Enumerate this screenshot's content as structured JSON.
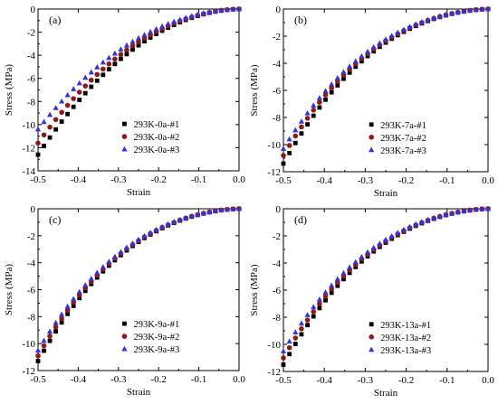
{
  "chart_data": [
    {
      "type": "scatter",
      "panel_label": "(a)",
      "xlabel": "Strain",
      "ylabel": "Stress (MPa)",
      "xlim": [
        -0.5,
        0.0
      ],
      "ylim": [
        -14,
        0
      ],
      "xticks": [
        -0.5,
        -0.4,
        -0.3,
        -0.2,
        -0.1,
        0.0
      ],
      "xtick_labels": [
        "-0.5",
        "-0.4",
        "-0.3",
        "-0.2",
        "-0.1",
        "0.0"
      ],
      "yticks": [
        0,
        -2,
        -4,
        -6,
        -8,
        -10,
        -12,
        -14
      ],
      "ytick_labels": [
        "0",
        "-2",
        "-4",
        "-6",
        "-8",
        "-10",
        "-12",
        "-14"
      ],
      "legend_position": "bottom-right",
      "series": [
        {
          "name": "293K-0a-#1",
          "marker": "square",
          "color": "#000000",
          "end_stress": -12.6,
          "exponent": 2.45
        },
        {
          "name": "293K-0a-#2",
          "marker": "circle",
          "color": "#8b1a1a",
          "end_stress": -11.6,
          "exponent": 2.5
        },
        {
          "name": "293K-0a-#3",
          "marker": "triangle",
          "color": "#3333dd",
          "end_stress": -10.4,
          "exponent": 2.55
        }
      ]
    },
    {
      "type": "scatter",
      "panel_label": "(b)",
      "xlabel": "Strain",
      "ylabel": "Stress (MPa)",
      "xlim": [
        -0.5,
        0.0
      ],
      "ylim": [
        -12,
        0
      ],
      "xticks": [
        -0.5,
        -0.4,
        -0.3,
        -0.2,
        -0.1,
        0.0
      ],
      "xtick_labels": [
        "-0.5",
        "-0.4",
        "-0.3",
        "-0.2",
        "-0.1",
        "0.0"
      ],
      "yticks": [
        0,
        -2,
        -4,
        -6,
        -8,
        -10,
        -12
      ],
      "ytick_labels": [
        "0",
        "-2",
        "-4",
        "-6",
        "-8",
        "-10",
        "-12"
      ],
      "legend_position": "bottom-right",
      "series": [
        {
          "name": "293K-7a-#1",
          "marker": "square",
          "color": "#000000",
          "end_stress": -11.4,
          "exponent": 3.0
        },
        {
          "name": "293K-7a-#2",
          "marker": "circle",
          "color": "#8b1a1a",
          "end_stress": -10.8,
          "exponent": 3.0
        },
        {
          "name": "293K-7a-#3",
          "marker": "triangle",
          "color": "#3333dd",
          "end_stress": -10.3,
          "exponent": 3.0
        }
      ]
    },
    {
      "type": "scatter",
      "panel_label": "(c)",
      "xlabel": "Strain",
      "ylabel": "Stress (MPa)",
      "xlim": [
        -0.5,
        0.0
      ],
      "ylim": [
        -12,
        0
      ],
      "xticks": [
        -0.5,
        -0.4,
        -0.3,
        -0.2,
        -0.1,
        0.0
      ],
      "xtick_labels": [
        "-0.5",
        "-0.4",
        "-0.3",
        "-0.2",
        "-0.1",
        "0.0"
      ],
      "yticks": [
        0,
        -2,
        -4,
        -6,
        -8,
        -10,
        -12
      ],
      "ytick_labels": [
        "0",
        "-2",
        "-4",
        "-6",
        "-8",
        "-10",
        "-12"
      ],
      "legend_position": "bottom-right",
      "series": [
        {
          "name": "293K-9a-#1",
          "marker": "square",
          "color": "#000000",
          "end_stress": -11.3,
          "exponent": 3.0
        },
        {
          "name": "293K-9a-#2",
          "marker": "circle",
          "color": "#8b1a1a",
          "end_stress": -10.9,
          "exponent": 3.0
        },
        {
          "name": "293K-9a-#3",
          "marker": "triangle",
          "color": "#3333dd",
          "end_stress": -10.5,
          "exponent": 3.0
        }
      ]
    },
    {
      "type": "scatter",
      "panel_label": "(d)",
      "xlabel": "Strain",
      "ylabel": "Stress (MPa)",
      "xlim": [
        -0.5,
        0.0
      ],
      "ylim": [
        -12,
        0
      ],
      "xticks": [
        -0.5,
        -0.4,
        -0.3,
        -0.2,
        -0.1,
        0.0
      ],
      "xtick_labels": [
        "-0.5",
        "-0.4",
        "-0.3",
        "-0.2",
        "-0.1",
        "0.0"
      ],
      "yticks": [
        0,
        -2,
        -4,
        -6,
        -8,
        -10,
        -12
      ],
      "ytick_labels": [
        "0",
        "-2",
        "-4",
        "-6",
        "-8",
        "-10",
        "-12"
      ],
      "legend_position": "bottom-right",
      "series": [
        {
          "name": "293K-13a-#1",
          "marker": "square",
          "color": "#000000",
          "end_stress": -11.5,
          "exponent": 3.0
        },
        {
          "name": "293K-13a-#2",
          "marker": "circle",
          "color": "#8b1a1a",
          "end_stress": -11.0,
          "exponent": 3.0
        },
        {
          "name": "293K-13a-#3",
          "marker": "triangle",
          "color": "#3333dd",
          "end_stress": -10.5,
          "exponent": 3.0
        }
      ]
    }
  ]
}
